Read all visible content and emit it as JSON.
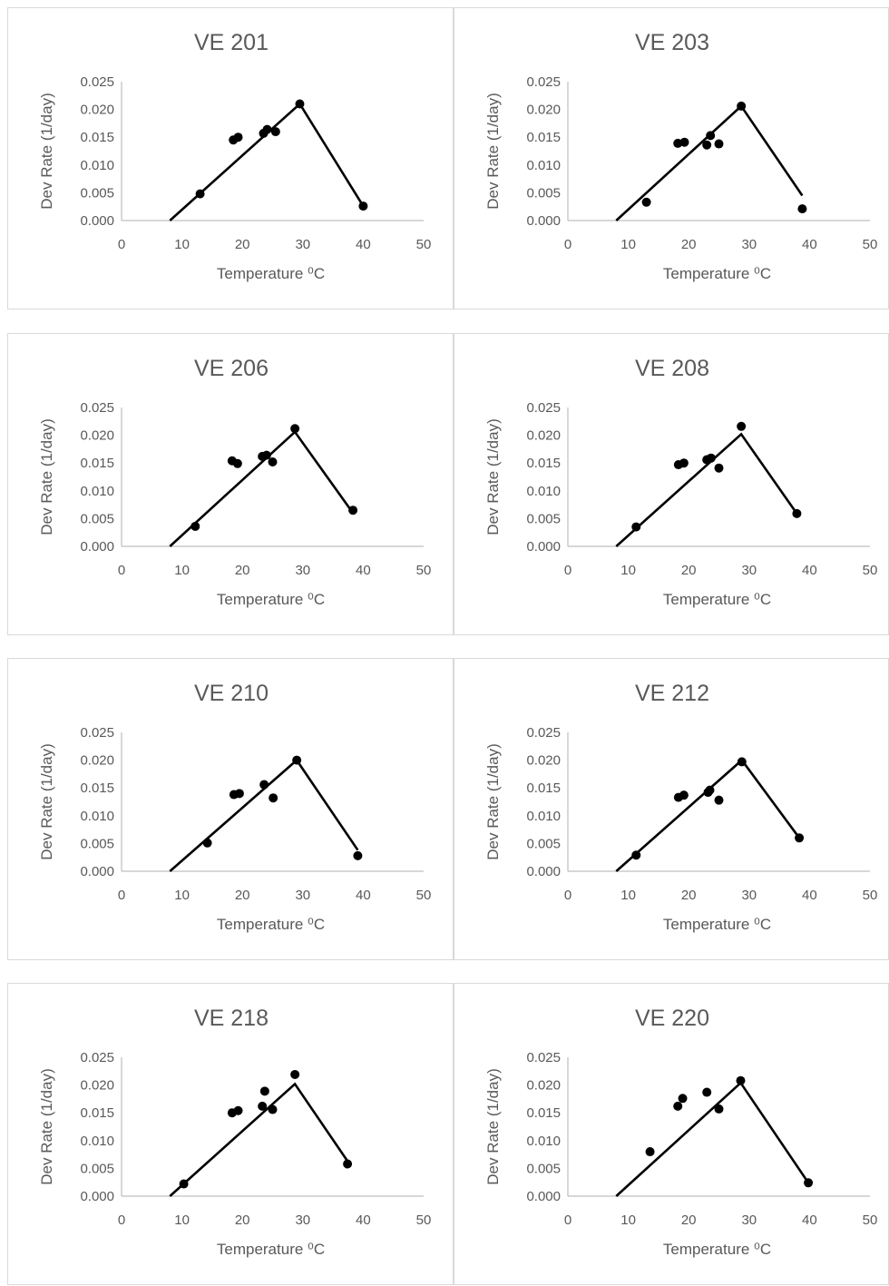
{
  "chart_data": [
    {
      "type": "scatter",
      "title": "VE 201",
      "xlabel": "Temperature ⁰C",
      "ylabel": "Dev Rate (1/day)",
      "xlim": [
        0,
        50
      ],
      "ylim": [
        0,
        0.025
      ],
      "x_ticks": [
        "0",
        "10",
        "20",
        "30",
        "40",
        "50"
      ],
      "y_ticks": [
        "0.000",
        "0.005",
        "0.010",
        "0.015",
        "0.020",
        "0.025"
      ],
      "points": [
        [
          13,
          0.0048
        ],
        [
          18.5,
          0.0145
        ],
        [
          19.3,
          0.015
        ],
        [
          23.5,
          0.0157
        ],
        [
          24.1,
          0.0164
        ],
        [
          25.5,
          0.016
        ],
        [
          29.5,
          0.021
        ],
        [
          40,
          0.0026
        ]
      ],
      "line": [
        [
          8,
          0.0
        ],
        [
          29.5,
          0.021
        ],
        [
          40,
          0.0026
        ]
      ]
    },
    {
      "type": "scatter",
      "title": "VE 203",
      "xlabel": "Temperature ⁰C",
      "ylabel": "Dev Rate (1/day)",
      "xlim": [
        0,
        50
      ],
      "ylim": [
        0,
        0.025
      ],
      "x_ticks": [
        "0",
        "10",
        "20",
        "30",
        "40",
        "50"
      ],
      "y_ticks": [
        "0.000",
        "0.005",
        "0.010",
        "0.015",
        "0.020",
        "0.025"
      ],
      "points": [
        [
          13,
          0.0033
        ],
        [
          18.2,
          0.0139
        ],
        [
          19.3,
          0.0141
        ],
        [
          23,
          0.0136
        ],
        [
          23.6,
          0.0153
        ],
        [
          25,
          0.0138
        ],
        [
          28.7,
          0.0206
        ],
        [
          38.8,
          0.0021
        ]
      ],
      "line": [
        [
          8,
          0.0
        ],
        [
          28.7,
          0.0206
        ],
        [
          38.8,
          0.0045
        ]
      ]
    },
    {
      "type": "scatter",
      "title": "VE 206",
      "xlabel": "Temperature ⁰C",
      "ylabel": "Dev Rate (1/day)",
      "xlim": [
        0,
        50
      ],
      "ylim": [
        0,
        0.025
      ],
      "x_ticks": [
        "0",
        "10",
        "20",
        "30",
        "40",
        "50"
      ],
      "y_ticks": [
        "0.000",
        "0.005",
        "0.010",
        "0.015",
        "0.020",
        "0.025"
      ],
      "points": [
        [
          12.2,
          0.0036
        ],
        [
          18.3,
          0.0154
        ],
        [
          19.2,
          0.0149
        ],
        [
          23.3,
          0.0162
        ],
        [
          24,
          0.0164
        ],
        [
          25,
          0.0152
        ],
        [
          28.7,
          0.0212
        ],
        [
          38.3,
          0.0065
        ]
      ],
      "line": [
        [
          8,
          0.0
        ],
        [
          28.7,
          0.0206
        ],
        [
          38.3,
          0.006
        ]
      ]
    },
    {
      "type": "scatter",
      "title": "VE 208",
      "xlabel": "Temperature ⁰C",
      "ylabel": "Dev Rate (1/day)",
      "xlim": [
        0,
        50
      ],
      "ylim": [
        0,
        0.025
      ],
      "x_ticks": [
        "0",
        "10",
        "20",
        "30",
        "40",
        "50"
      ],
      "y_ticks": [
        "0.000",
        "0.005",
        "0.010",
        "0.015",
        "0.020",
        "0.025"
      ],
      "points": [
        [
          11.3,
          0.0035
        ],
        [
          18.3,
          0.0147
        ],
        [
          19.2,
          0.015
        ],
        [
          23,
          0.0156
        ],
        [
          23.7,
          0.0159
        ],
        [
          25,
          0.0141
        ],
        [
          28.7,
          0.0216
        ],
        [
          37.9,
          0.0059
        ]
      ],
      "line": [
        [
          8,
          0.0
        ],
        [
          28.7,
          0.0202
        ],
        [
          37.9,
          0.0059
        ]
      ]
    },
    {
      "type": "scatter",
      "title": "VE 210",
      "xlabel": "Temperature ⁰C",
      "ylabel": "Dev Rate (1/day)",
      "xlim": [
        0,
        50
      ],
      "ylim": [
        0,
        0.025
      ],
      "x_ticks": [
        "0",
        "10",
        "20",
        "30",
        "40",
        "50"
      ],
      "y_ticks": [
        "0.000",
        "0.005",
        "0.010",
        "0.015",
        "0.020",
        "0.025"
      ],
      "points": [
        [
          14.2,
          0.0051
        ],
        [
          18.6,
          0.0138
        ],
        [
          19.5,
          0.014
        ],
        [
          23.6,
          0.0156
        ],
        [
          25.1,
          0.0132
        ],
        [
          29,
          0.02
        ],
        [
          39.1,
          0.0028
        ]
      ],
      "line": [
        [
          8,
          0.0
        ],
        [
          29,
          0.02
        ],
        [
          39.1,
          0.0038
        ]
      ]
    },
    {
      "type": "scatter",
      "title": "VE 212",
      "xlabel": "Temperature ⁰C",
      "ylabel": "Dev Rate (1/day)",
      "xlim": [
        0,
        50
      ],
      "ylim": [
        0,
        0.025
      ],
      "x_ticks": [
        "0",
        "10",
        "20",
        "30",
        "40",
        "50"
      ],
      "y_ticks": [
        "0.000",
        "0.005",
        "0.010",
        "0.015",
        "0.020",
        "0.025"
      ],
      "points": [
        [
          11.3,
          0.0029
        ],
        [
          18.3,
          0.0133
        ],
        [
          19.2,
          0.0137
        ],
        [
          23.2,
          0.0142
        ],
        [
          23.5,
          0.0146
        ],
        [
          25,
          0.0128
        ],
        [
          28.8,
          0.0197
        ],
        [
          38.3,
          0.006
        ]
      ],
      "line": [
        [
          8,
          0.0
        ],
        [
          28.8,
          0.02
        ],
        [
          38.3,
          0.006
        ]
      ]
    },
    {
      "type": "scatter",
      "title": "VE 218",
      "xlabel": "Temperature ⁰C",
      "ylabel": "Dev Rate (1/day)",
      "xlim": [
        0,
        50
      ],
      "ylim": [
        0,
        0.025
      ],
      "x_ticks": [
        "0",
        "10",
        "20",
        "30",
        "40",
        "50"
      ],
      "y_ticks": [
        "0.000",
        "0.005",
        "0.010",
        "0.015",
        "0.020",
        "0.025"
      ],
      "points": [
        [
          10.3,
          0.0022
        ],
        [
          18.3,
          0.015
        ],
        [
          19.3,
          0.0154
        ],
        [
          23.3,
          0.0162
        ],
        [
          23.7,
          0.0189
        ],
        [
          25,
          0.0156
        ],
        [
          28.7,
          0.0219
        ],
        [
          37.4,
          0.0058
        ]
      ],
      "line": [
        [
          8,
          0.0
        ],
        [
          28.7,
          0.0202
        ],
        [
          37.4,
          0.0063
        ]
      ]
    },
    {
      "type": "scatter",
      "title": "VE 220",
      "xlabel": "Temperature ⁰C",
      "ylabel": "Dev Rate (1/day)",
      "xlim": [
        0,
        50
      ],
      "ylim": [
        0,
        0.025
      ],
      "x_ticks": [
        "0",
        "10",
        "20",
        "30",
        "40",
        "50"
      ],
      "y_ticks": [
        "0.000",
        "0.005",
        "0.010",
        "0.015",
        "0.020",
        "0.025"
      ],
      "points": [
        [
          13.6,
          0.008
        ],
        [
          18.2,
          0.0162
        ],
        [
          19,
          0.0176
        ],
        [
          23,
          0.0187
        ],
        [
          25,
          0.0157
        ],
        [
          28.6,
          0.0208
        ],
        [
          39.8,
          0.0024
        ]
      ],
      "line": [
        [
          8,
          0.0
        ],
        [
          28.6,
          0.0204
        ],
        [
          39.8,
          0.0024
        ]
      ]
    }
  ]
}
